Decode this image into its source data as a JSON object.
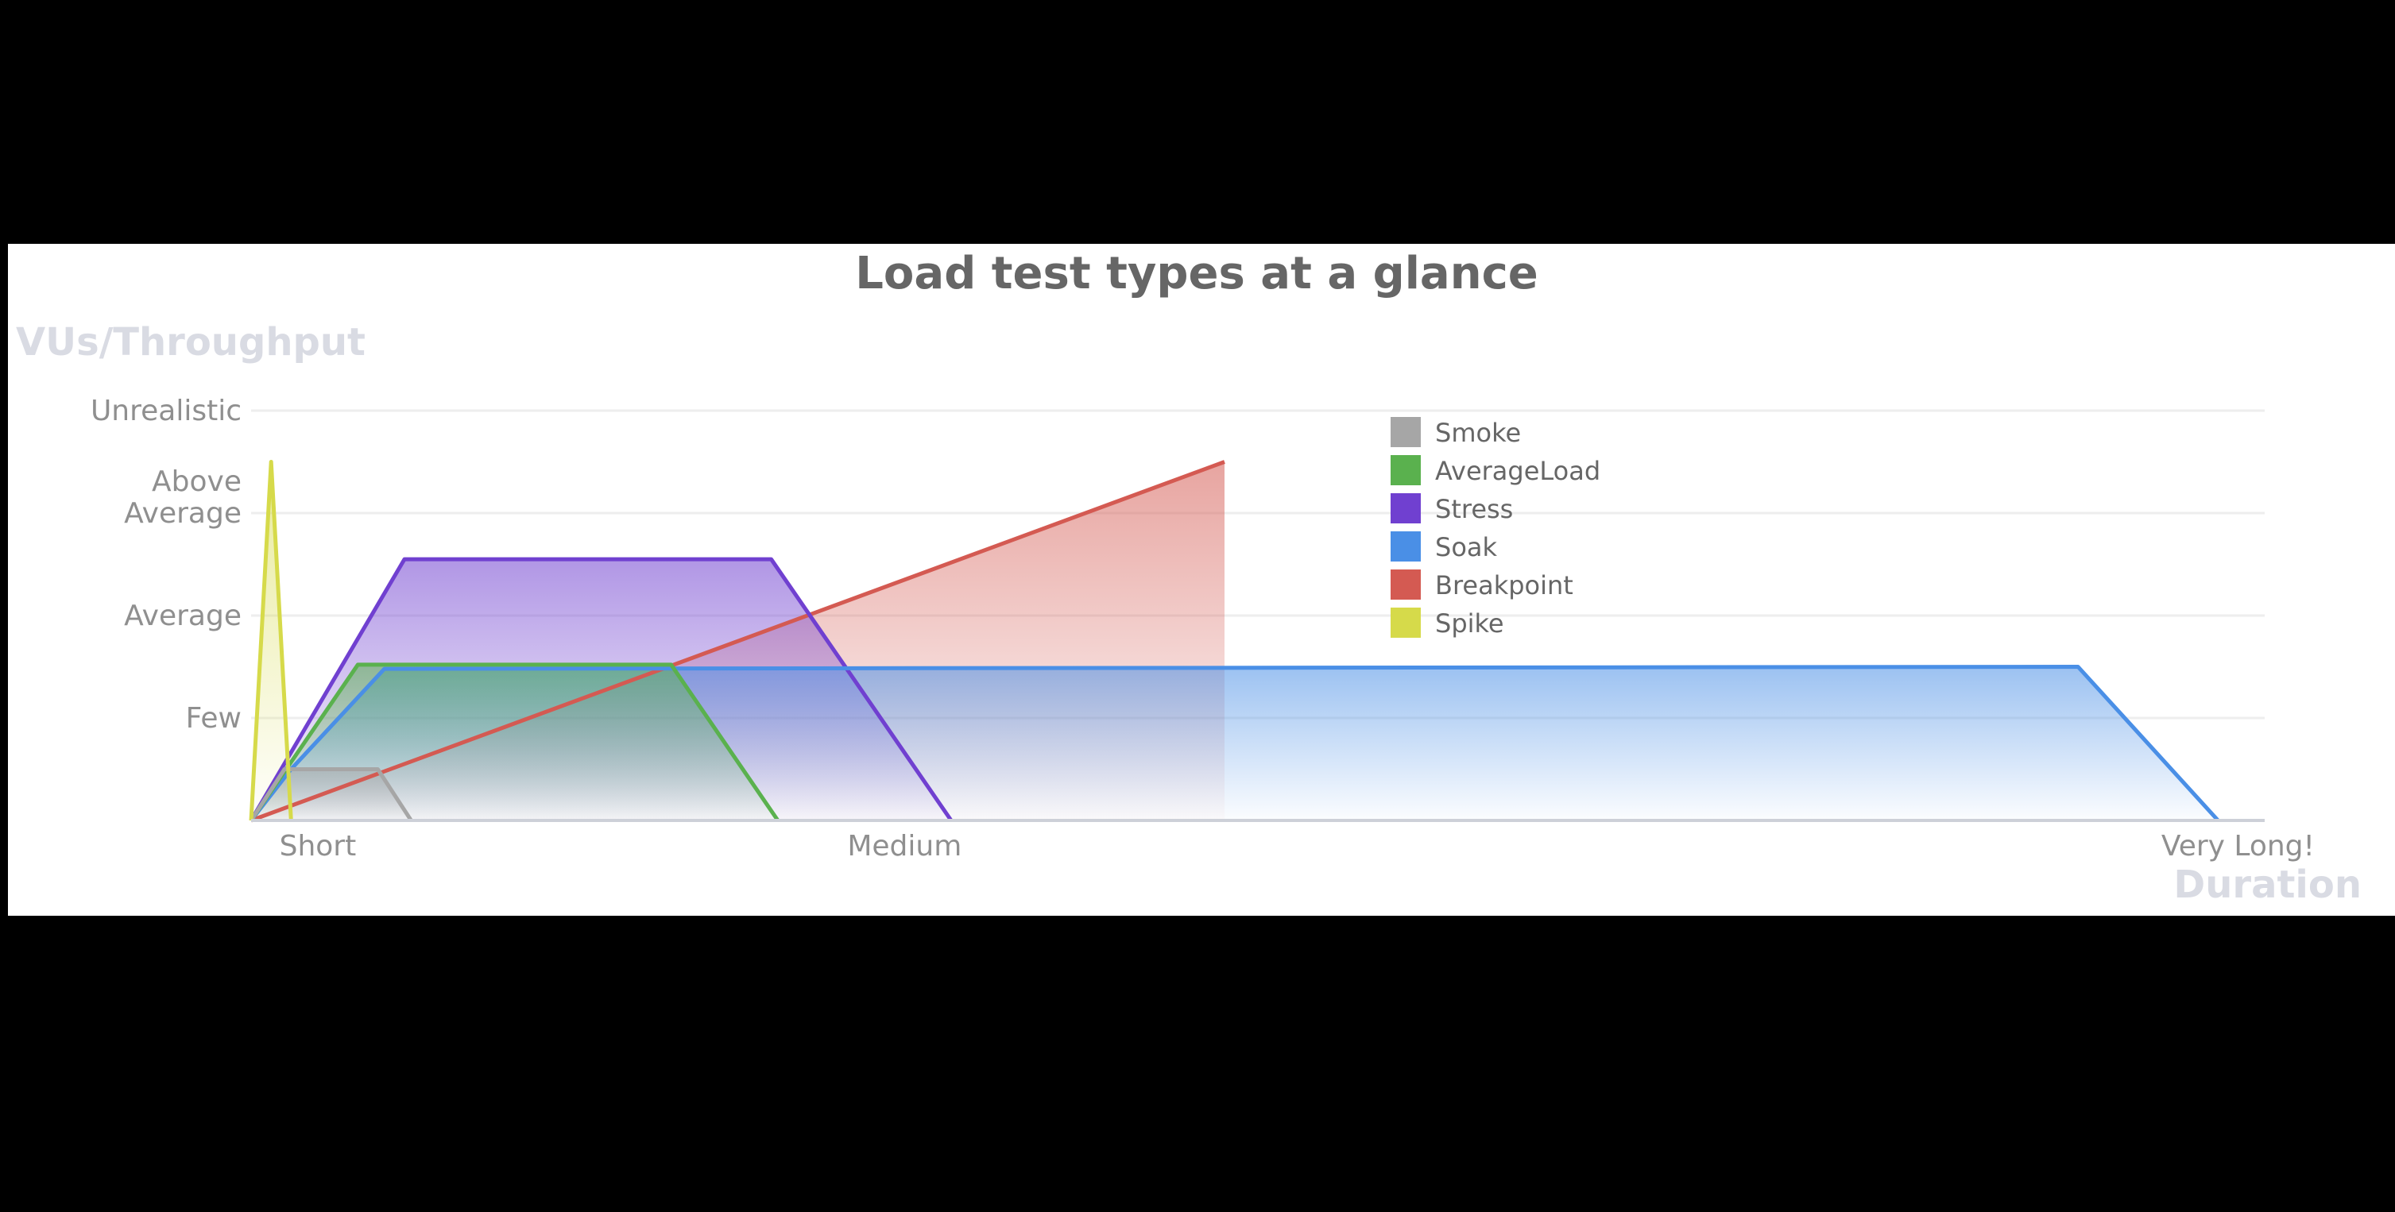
{
  "chart_data": {
    "type": "area",
    "title": "Load test types at a glance",
    "ylabel": "VUs/Throughput",
    "xlabel": "Duration",
    "y_ticks": [
      {
        "value": 1,
        "label": [
          "Few"
        ]
      },
      {
        "value": 2,
        "label": [
          "Average"
        ]
      },
      {
        "value": 3,
        "label": [
          "Above",
          "Average"
        ]
      },
      {
        "value": 4,
        "label": [
          "Unrealistic"
        ]
      }
    ],
    "x_ticks": [
      {
        "value": 0.5,
        "label": "Short"
      },
      {
        "value": 4.9,
        "label": "Medium"
      },
      {
        "value": 14.9,
        "label": "Very Long!"
      }
    ],
    "xlim": [
      0,
      15.1
    ],
    "ylim": [
      0,
      4
    ],
    "grid": true,
    "legend_position": "top-center",
    "series": [
      {
        "name": "Smoke",
        "color": "#a6a6a6",
        "points": [
          [
            0,
            0
          ],
          [
            0.25,
            0.5
          ],
          [
            0.95,
            0.5
          ],
          [
            1.2,
            0
          ]
        ]
      },
      {
        "name": "AverageLoad",
        "color": "#5ab14e",
        "points": [
          [
            0,
            0
          ],
          [
            0.8,
            1.52
          ],
          [
            3.15,
            1.52
          ],
          [
            3.95,
            0
          ]
        ]
      },
      {
        "name": "Stress",
        "color": "#7040d0",
        "points": [
          [
            0,
            0
          ],
          [
            1.15,
            2.55
          ],
          [
            3.9,
            2.55
          ],
          [
            5.25,
            0
          ]
        ]
      },
      {
        "name": "Soak",
        "color": "#4a8fe6",
        "points": [
          [
            0,
            0
          ],
          [
            0.3,
            0.5
          ],
          [
            1.0,
            1.48
          ],
          [
            13.7,
            1.5
          ],
          [
            14.75,
            0
          ]
        ]
      },
      {
        "name": "Breakpoint",
        "color": "#d45a52",
        "points": [
          [
            0,
            0
          ],
          [
            7.3,
            3.5
          ],
          [
            7.3,
            0
          ]
        ]
      },
      {
        "name": "Spike",
        "color": "#d6da4a",
        "points": [
          [
            0,
            0
          ],
          [
            0.15,
            3.5
          ],
          [
            0.3,
            0
          ]
        ]
      }
    ]
  }
}
